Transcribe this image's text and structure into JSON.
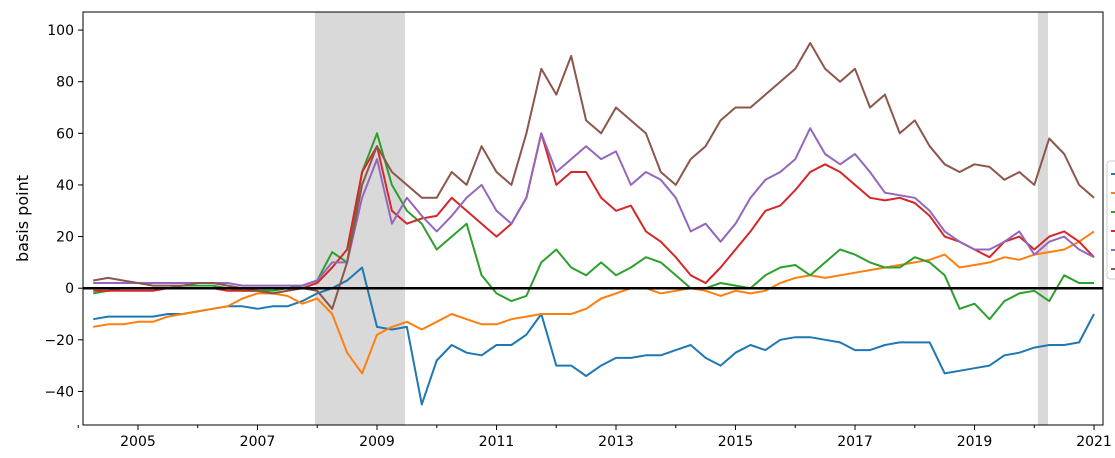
{
  "chart_data": {
    "type": "line",
    "ylabel": "basis point",
    "x": [
      2004.25,
      2004.5,
      2004.75,
      2005,
      2005.25,
      2005.5,
      2005.75,
      2006,
      2006.25,
      2006.5,
      2006.75,
      2007,
      2007.25,
      2007.5,
      2007.75,
      2008,
      2008.25,
      2008.5,
      2008.75,
      2009,
      2009.25,
      2009.5,
      2009.75,
      2010,
      2010.25,
      2010.5,
      2010.75,
      2011,
      2011.25,
      2011.5,
      2011.75,
      2012,
      2012.25,
      2012.5,
      2012.75,
      2013,
      2013.25,
      2013.5,
      2013.75,
      2014,
      2014.25,
      2014.5,
      2014.75,
      2015,
      2015.25,
      2015.5,
      2015.75,
      2016,
      2016.25,
      2016.5,
      2016.75,
      2017,
      2017.25,
      2017.5,
      2017.75,
      2018,
      2018.25,
      2018.5,
      2018.75,
      2019,
      2019.25,
      2019.5,
      2019.75,
      2020,
      2020.25,
      2020.5,
      2020.75,
      2021
    ],
    "series": [
      {
        "color": "#1f77b4",
        "values": [
          -12,
          -11,
          -11,
          -11,
          -11,
          -10,
          -10,
          -9,
          -8,
          -7,
          -7,
          -8,
          -7,
          -7,
          -5,
          -2,
          0,
          3,
          8,
          -15,
          -16,
          -15,
          -45,
          -28,
          -22,
          -25,
          -26,
          -22,
          -22,
          -18,
          -10,
          -30,
          -30,
          -34,
          -30,
          -27,
          -27,
          -26,
          -26,
          -24,
          -22,
          -27,
          -30,
          -25,
          -22,
          -24,
          -20,
          -19,
          -19,
          -20,
          -21,
          -24,
          -24,
          -22,
          -21,
          -21,
          -21,
          -33,
          -32,
          -31,
          -30,
          -26,
          -25,
          -23,
          -22,
          -22,
          -21,
          -10
        ]
      },
      {
        "color": "#ff7f0e",
        "values": [
          -15,
          -14,
          -14,
          -13,
          -13,
          -11,
          -10,
          -9,
          -8,
          -7,
          -4,
          -2,
          -2,
          -3,
          -6,
          -4,
          -10,
          -25,
          -33,
          -18,
          -15,
          -13,
          -16,
          -13,
          -10,
          -12,
          -14,
          -14,
          -12,
          -11,
          -10,
          -10,
          -10,
          -8,
          -4,
          -2,
          0,
          0,
          -2,
          -1,
          0,
          -1,
          -3,
          -1,
          -2,
          -1,
          2,
          4,
          5,
          4,
          5,
          6,
          7,
          8,
          9,
          10,
          11,
          13,
          8,
          9,
          10,
          12,
          11,
          13,
          14,
          15,
          18,
          22
        ]
      },
      {
        "color": "#2ca02c",
        "values": [
          -2,
          -1,
          0,
          0,
          0,
          0,
          1,
          1,
          1,
          0,
          -1,
          -1,
          -1,
          0,
          1,
          3,
          14,
          10,
          45,
          60,
          40,
          30,
          25,
          15,
          20,
          25,
          5,
          -2,
          -5,
          -3,
          10,
          15,
          8,
          5,
          10,
          5,
          8,
          12,
          10,
          5,
          0,
          0,
          2,
          1,
          0,
          5,
          8,
          9,
          5,
          10,
          15,
          13,
          10,
          8,
          8,
          12,
          10,
          5,
          -8,
          -6,
          -12,
          -5,
          -2,
          -1,
          -5,
          5,
          2,
          2
        ]
      },
      {
        "color": "#d62728",
        "values": [
          -1,
          -1,
          -1,
          -1,
          -1,
          0,
          0,
          0,
          0,
          -1,
          -1,
          -1,
          -2,
          -1,
          0,
          2,
          8,
          15,
          45,
          55,
          30,
          25,
          27,
          28,
          35,
          30,
          25,
          20,
          25,
          35,
          60,
          40,
          45,
          45,
          35,
          30,
          32,
          22,
          18,
          12,
          5,
          2,
          8,
          15,
          22,
          30,
          32,
          38,
          45,
          48,
          45,
          40,
          35,
          34,
          35,
          33,
          28,
          20,
          18,
          15,
          12,
          18,
          20,
          15,
          20,
          22,
          18,
          12
        ]
      },
      {
        "color": "#9467bd",
        "values": [
          2,
          2,
          2,
          2,
          2,
          2,
          2,
          2,
          2,
          2,
          1,
          1,
          1,
          1,
          1,
          3,
          10,
          10,
          35,
          50,
          25,
          35,
          28,
          22,
          28,
          35,
          40,
          30,
          25,
          35,
          60,
          45,
          50,
          55,
          50,
          53,
          40,
          45,
          42,
          35,
          22,
          25,
          18,
          25,
          35,
          42,
          45,
          50,
          62,
          52,
          48,
          52,
          45,
          37,
          36,
          35,
          30,
          22,
          18,
          15,
          15,
          18,
          22,
          13,
          18,
          20,
          15,
          12
        ]
      },
      {
        "color": "#8c564b",
        "values": [
          3,
          4,
          3,
          2,
          1,
          1,
          1,
          2,
          2,
          1,
          0,
          -1,
          -2,
          -1,
          0,
          -1,
          -8,
          10,
          40,
          55,
          45,
          40,
          35,
          35,
          45,
          40,
          55,
          45,
          40,
          60,
          85,
          75,
          90,
          65,
          60,
          70,
          65,
          60,
          45,
          40,
          50,
          55,
          65,
          70,
          70,
          75,
          80,
          85,
          95,
          85,
          80,
          85,
          70,
          75,
          60,
          65,
          55,
          48,
          45,
          48,
          47,
          42,
          45,
          40,
          58,
          52,
          40,
          35
        ]
      }
    ],
    "xlim": [
      2004.08,
      2021.15
    ],
    "xticks": [
      2005,
      2007,
      2009,
      2011,
      2013,
      2015,
      2017,
      2019,
      2021
    ],
    "xminorticks": [
      2004,
      2006,
      2008,
      2010,
      2012,
      2014,
      2016,
      2018,
      2020
    ],
    "ylim": [
      -53,
      107
    ],
    "yticks": [
      {
        "value": -40,
        "label": "−40"
      },
      {
        "value": -20,
        "label": "−20"
      },
      0,
      20,
      40,
      60,
      80,
      100
    ],
    "hline": 0,
    "shaded_spans": [
      [
        2007.96,
        2009.47
      ],
      [
        2020.06,
        2020.23
      ]
    ],
    "shade_color": "#d9d9d9"
  }
}
